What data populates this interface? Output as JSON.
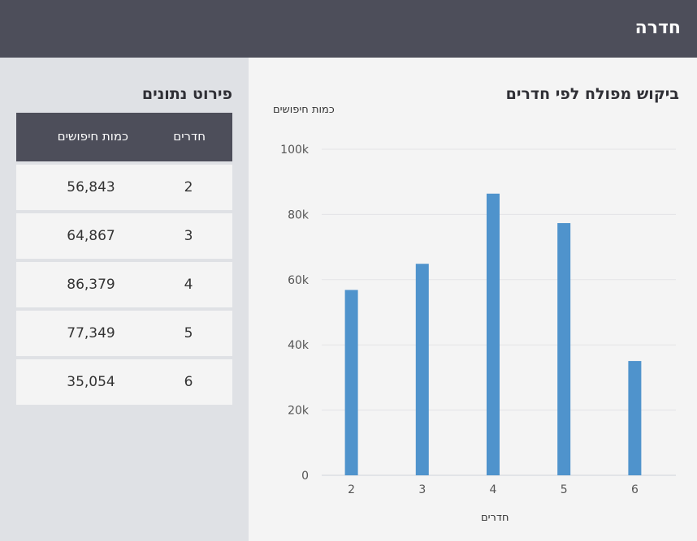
{
  "header": {
    "title": "חדרה"
  },
  "chart_panel": {
    "title": "ביקוש מפולח לפי חדרים"
  },
  "side_panel": {
    "title": "פירוט נתונים",
    "table": {
      "columns": [
        "חדרים",
        "כמות חיפושים"
      ],
      "rows": [
        {
          "rooms": "2",
          "count": "56,843"
        },
        {
          "rooms": "3",
          "count": "64,867"
        },
        {
          "rooms": "4",
          "count": "86,379"
        },
        {
          "rooms": "5",
          "count": "77,349"
        },
        {
          "rooms": "6",
          "count": "35,054"
        }
      ]
    }
  },
  "chart_data": {
    "type": "bar",
    "categories": [
      "2",
      "3",
      "4",
      "5",
      "6"
    ],
    "values": [
      56843,
      64867,
      86379,
      77349,
      35054
    ],
    "ylim": [
      0,
      100000
    ],
    "yticks": [
      0,
      20000,
      40000,
      60000,
      80000,
      100000
    ],
    "ytick_labels": [
      "0",
      "20k",
      "40k",
      "60k",
      "80k",
      "100k"
    ],
    "xlabel": "חדרים",
    "ylabel": "כמות חיפושים",
    "bar_color": "#4f93cc",
    "grid_color": "#e3e3e6",
    "grid": true
  }
}
